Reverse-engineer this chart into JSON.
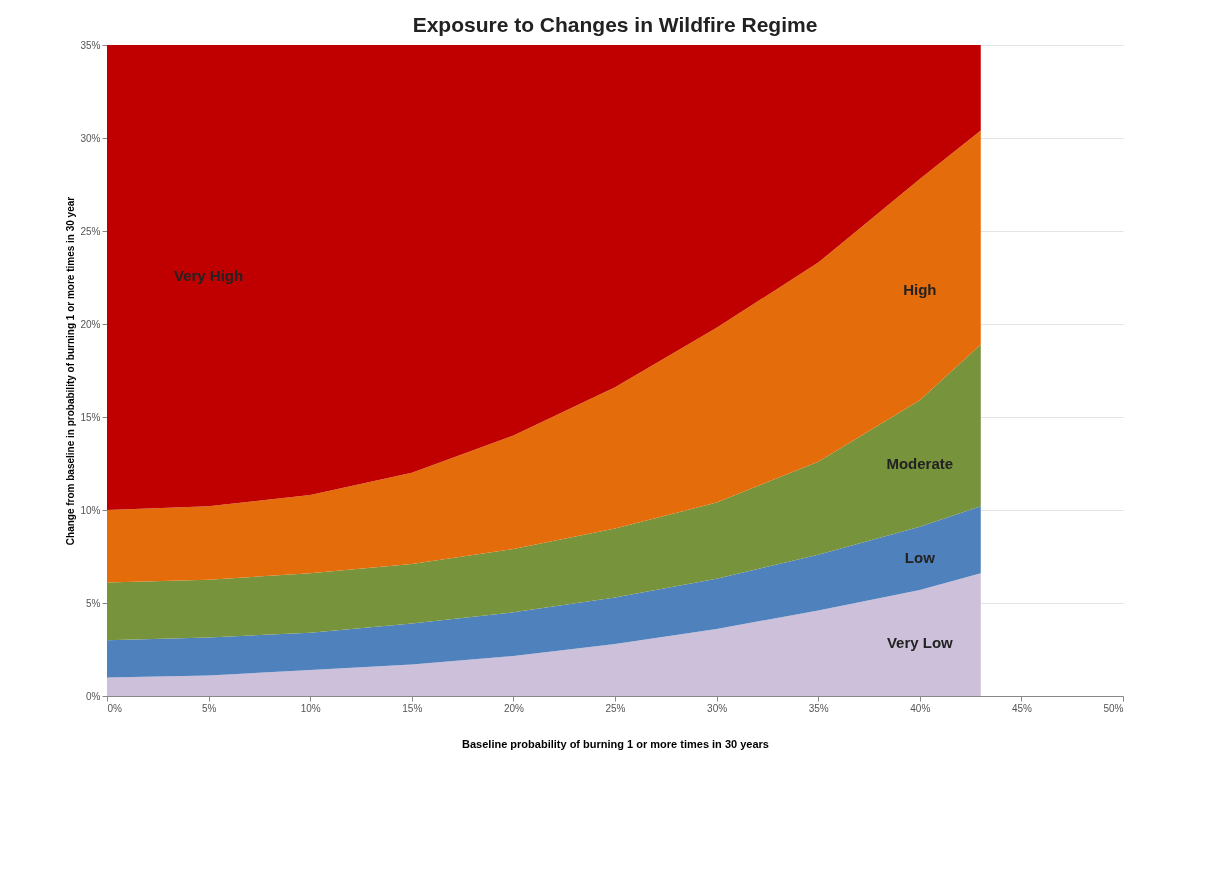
{
  "chart_data": {
    "type": "area",
    "stacked": true,
    "title": "Exposure to Changes in Wildfire Regime",
    "xlabel": "Baseline  probability of burning 1 or more times in 30 years",
    "ylabel": "Change from baseline in probability of burning 1 or more times in 30 year",
    "x": [
      0,
      5,
      10,
      15,
      20,
      25,
      30,
      35,
      40,
      43
    ],
    "series": [
      {
        "name": "Very Low",
        "color": "#ccc0da",
        "values": [
          1.0,
          1.1,
          1.4,
          1.7,
          2.15,
          2.8,
          3.6,
          4.6,
          5.7,
          6.6
        ]
      },
      {
        "name": "Low",
        "color": "#4f81bd",
        "values": [
          2.0,
          2.05,
          2.0,
          2.2,
          2.35,
          2.5,
          2.7,
          3.0,
          3.4,
          3.6
        ]
      },
      {
        "name": "Moderate",
        "color": "#77933c",
        "values": [
          3.1,
          3.1,
          3.2,
          3.2,
          3.4,
          3.7,
          4.1,
          5.0,
          6.8,
          8.7
        ]
      },
      {
        "name": "High",
        "color": "#e46c0a",
        "values": [
          3.9,
          3.95,
          4.2,
          4.9,
          6.1,
          7.6,
          9.4,
          10.7,
          11.9,
          11.5
        ]
      },
      {
        "name": "Very High",
        "color": "#c00000",
        "values": [
          25.0,
          24.8,
          24.2,
          23.0,
          21.0,
          18.4,
          15.2,
          11.7,
          7.2,
          4.6
        ]
      }
    ],
    "xlim": [
      0,
      50
    ],
    "ylim": [
      0,
      35
    ],
    "xticks": [
      {
        "value": 0,
        "label": "0%"
      },
      {
        "value": 5,
        "label": "5%"
      },
      {
        "value": 10,
        "label": "10%"
      },
      {
        "value": 15,
        "label": "15%"
      },
      {
        "value": 20,
        "label": "20%"
      },
      {
        "value": 25,
        "label": "25%"
      },
      {
        "value": 30,
        "label": "30%"
      },
      {
        "value": 35,
        "label": "35%"
      },
      {
        "value": 40,
        "label": "40%"
      },
      {
        "value": 45,
        "label": "45%"
      },
      {
        "value": 50,
        "label": "50%"
      }
    ],
    "yticks": [
      {
        "value": 0,
        "label": "0%"
      },
      {
        "value": 5,
        "label": "5%"
      },
      {
        "value": 10,
        "label": "10%"
      },
      {
        "value": 15,
        "label": "15%"
      },
      {
        "value": 20,
        "label": "20%"
      },
      {
        "value": 25,
        "label": "25%"
      },
      {
        "value": 30,
        "label": "30%"
      },
      {
        "value": 35,
        "label": "35%"
      }
    ],
    "grid": "y",
    "legend": false
  }
}
